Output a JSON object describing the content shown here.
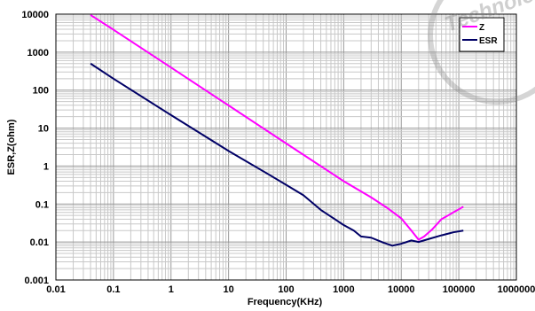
{
  "chart_data": {
    "type": "line",
    "title": "",
    "xlabel": "Frequency(KHz)",
    "ylabel": "ESR,Z(ohm)",
    "x_scale": "log",
    "y_scale": "log",
    "xlim": [
      0.01,
      1000000
    ],
    "ylim": [
      0.001,
      10000
    ],
    "grid": true,
    "legend_position": "top-right",
    "x_ticks": [
      "0.01",
      "0.1",
      "1",
      "10",
      "100",
      "1000",
      "10000",
      "100000",
      "1000000"
    ],
    "y_ticks": [
      "10000",
      "1000",
      "100",
      "10",
      "1",
      "0.1",
      "0.01",
      "0.001"
    ],
    "series": [
      {
        "name": "Z",
        "color": "#ff00ff",
        "points": [
          [
            0.04,
            9500
          ],
          [
            0.1,
            3900
          ],
          [
            1,
            395
          ],
          [
            10,
            39.5
          ],
          [
            100,
            3.95
          ],
          [
            1000,
            0.4
          ],
          [
            3000,
            0.15
          ],
          [
            6000,
            0.075
          ],
          [
            10000,
            0.042
          ],
          [
            15000,
            0.02
          ],
          [
            20000,
            0.0115
          ],
          [
            25000,
            0.014
          ],
          [
            35000,
            0.022
          ],
          [
            50000,
            0.04
          ],
          [
            80000,
            0.06
          ],
          [
            120000,
            0.085
          ]
        ]
      },
      {
        "name": "ESR",
        "color": "#000066",
        "points": [
          [
            0.04,
            500
          ],
          [
            0.1,
            200
          ],
          [
            1,
            22
          ],
          [
            10,
            2.5
          ],
          [
            50,
            0.6
          ],
          [
            100,
            0.32
          ],
          [
            200,
            0.17
          ],
          [
            400,
            0.07
          ],
          [
            700,
            0.04
          ],
          [
            1000,
            0.028
          ],
          [
            1500,
            0.02
          ],
          [
            2000,
            0.014
          ],
          [
            3000,
            0.013
          ],
          [
            5000,
            0.0095
          ],
          [
            7000,
            0.008
          ],
          [
            10000,
            0.009
          ],
          [
            15000,
            0.011
          ],
          [
            20000,
            0.01
          ],
          [
            30000,
            0.012
          ],
          [
            50000,
            0.015
          ],
          [
            80000,
            0.018
          ],
          [
            120000,
            0.02
          ]
        ]
      }
    ],
    "watermark": "Technology"
  }
}
